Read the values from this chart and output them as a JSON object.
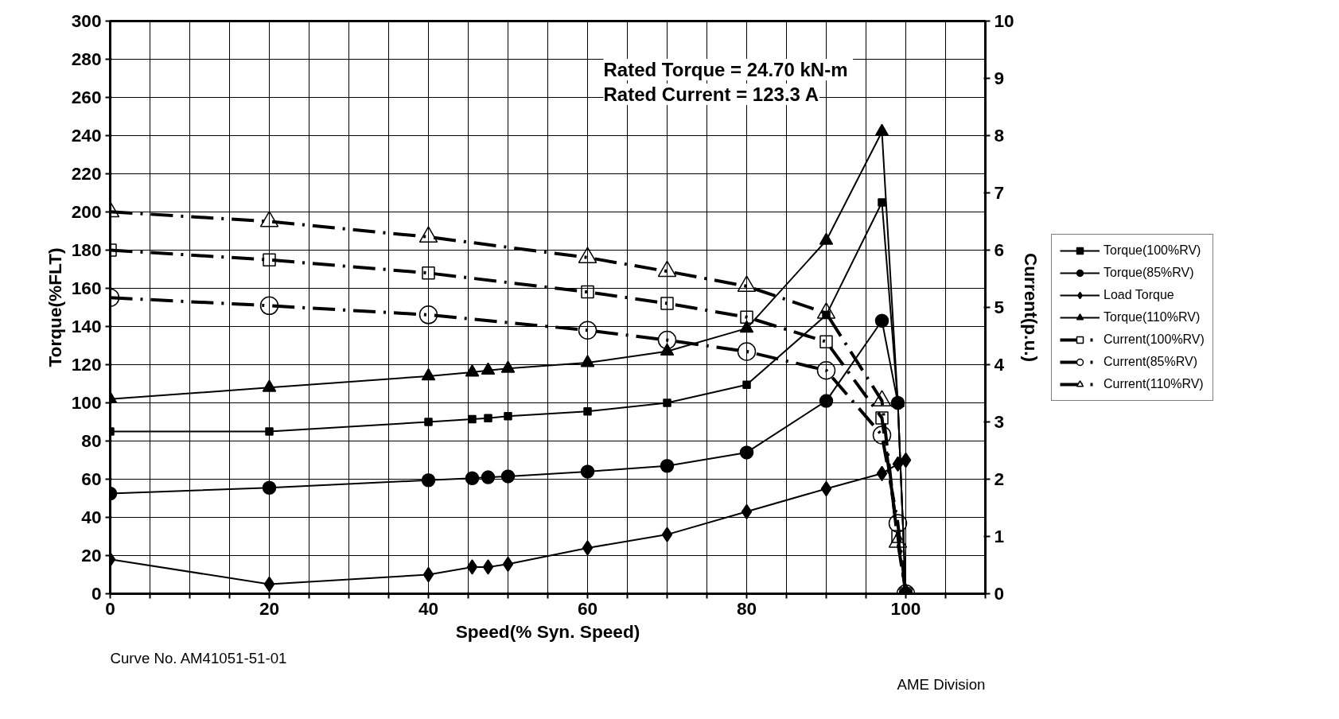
{
  "chart_data": {
    "type": "line",
    "xlabel": "Speed(% Syn. Speed)",
    "ylabel": "Torque(%FLT)",
    "y2label": "Current(p.u.)",
    "annotations": [
      "Rated Torque =  24.70 kN-m",
      "Rated Current = 123.3 A",
      "Curve No. AM41051-51-01",
      "AME Division"
    ],
    "x": [
      0,
      20,
      40,
      45.5,
      47.5,
      50,
      60,
      70,
      80,
      90,
      97,
      99,
      100
    ],
    "series": [
      {
        "name": "Torque(100%RV)",
        "color": "#000000",
        "marker": "square",
        "line_style": "solid",
        "values": [
          85,
          85,
          90,
          91.5,
          92,
          93,
          95.5,
          100,
          109.5,
          146,
          205,
          100,
          0
        ]
      },
      {
        "name": "Torque(85%RV)",
        "color": "#000000",
        "marker": "circle",
        "line_style": "solid",
        "values": [
          52.5,
          55.5,
          59.5,
          60.5,
          61,
          61.5,
          64,
          67,
          74,
          101,
          143,
          100,
          0
        ]
      },
      {
        "name": "Load Torque",
        "color": "#000000",
        "marker": "diamond",
        "line_style": "solid",
        "values": [
          18,
          5,
          10,
          14,
          14,
          15.5,
          24,
          31,
          43,
          55,
          63,
          68,
          70
        ]
      },
      {
        "name": "Torque(110%RV)",
        "color": "#000000",
        "marker": "triangle",
        "line_style": "solid",
        "values": [
          102,
          108,
          114,
          116,
          117,
          118,
          121,
          127,
          139,
          185,
          242,
          100,
          0
        ]
      },
      {
        "name": "Current(100%RV)",
        "color": "#000000",
        "marker": "square",
        "line_style": "dashed",
        "axis": "y2",
        "x": [
          0,
          20,
          40,
          60,
          70,
          80,
          90,
          97,
          99,
          100
        ],
        "values": [
          6.0,
          5.83,
          5.6,
          5.27,
          5.07,
          4.83,
          4.4,
          3.07,
          1.0,
          0
        ]
      },
      {
        "name": "Current(85%RV)",
        "color": "#000000",
        "marker": "circle",
        "line_style": "dashed",
        "axis": "y2",
        "x": [
          0,
          20,
          40,
          60,
          70,
          80,
          90,
          97,
          99,
          100
        ],
        "values": [
          5.17,
          5.03,
          4.87,
          4.6,
          4.43,
          4.23,
          3.9,
          2.77,
          1.23,
          0
        ]
      },
      {
        "name": "Current(110%RV)",
        "color": "#000000",
        "marker": "triangle",
        "line_style": "dashed",
        "axis": "y2",
        "x": [
          0,
          20,
          40,
          60,
          70,
          80,
          90,
          97,
          99,
          100
        ],
        "values": [
          6.67,
          6.5,
          6.23,
          5.87,
          5.63,
          5.37,
          4.9,
          3.37,
          0.9,
          0
        ]
      }
    ],
    "xlim": [
      0,
      110
    ],
    "xticks": [
      0,
      {
        "value": 5,
        "label": null
      },
      {
        "value": 10,
        "label": null
      },
      {
        "value": 15,
        "label": null
      },
      20,
      {
        "value": 25,
        "label": null
      },
      {
        "value": 30,
        "label": null
      },
      {
        "value": 35,
        "label": null
      },
      40,
      {
        "value": 45,
        "label": null
      },
      {
        "value": 50,
        "label": null
      },
      {
        "value": 55,
        "label": null
      },
      60,
      {
        "value": 65,
        "label": null
      },
      {
        "value": 70,
        "label": null
      },
      {
        "value": 75,
        "label": null
      },
      80,
      {
        "value": 85,
        "label": null
      },
      {
        "value": 90,
        "label": null
      },
      {
        "value": 95,
        "label": null
      },
      100,
      {
        "value": 105,
        "label": null
      },
      {
        "value": 110,
        "label": null
      }
    ],
    "ylim": [
      0,
      300
    ],
    "yticks": [
      0,
      20,
      40,
      60,
      80,
      100,
      120,
      140,
      160,
      180,
      200,
      220,
      240,
      260,
      280,
      300
    ],
    "y2lim": [
      0,
      10
    ],
    "y2ticks": [
      0,
      1,
      2,
      3,
      4,
      5,
      6,
      7,
      8,
      9,
      10
    ],
    "grid": true,
    "legend": "right"
  }
}
